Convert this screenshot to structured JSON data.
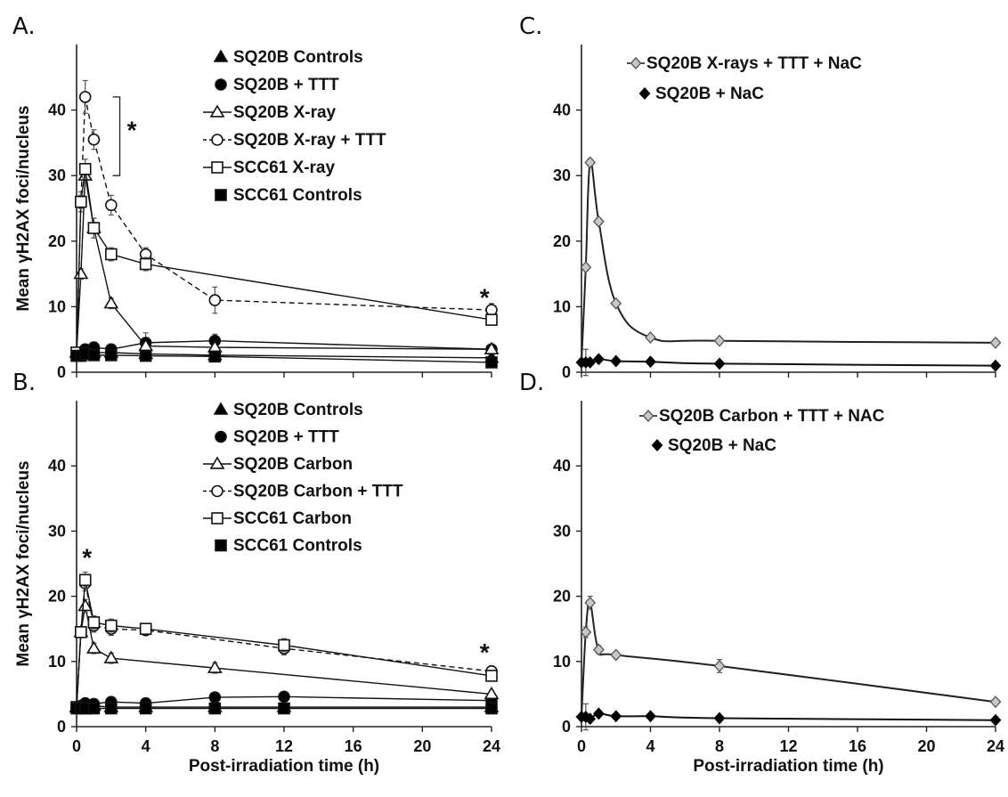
{
  "figure": {
    "x_axis_label": "Post-irradiation time (h)",
    "y_axis_label": "Mean γH2AX foci/nucleus"
  },
  "chart_data": [
    {
      "panel": "A.",
      "type": "line",
      "xlim": [
        0,
        24
      ],
      "ylim": [
        0,
        50
      ],
      "x_ticks": [
        0,
        4,
        8,
        12,
        16,
        20,
        24
      ],
      "y_ticks": [
        0,
        10,
        20,
        30,
        40
      ],
      "x_tick_labels_shown": false,
      "ylabel": "Mean γH2AX foci/nucleus",
      "annotations": [
        {
          "text": "*",
          "x": 3.2,
          "y": 37,
          "bracket_from": 42,
          "bracket_to": 30,
          "bracket_x": 2.5
        },
        {
          "text": "*",
          "x": 23.6,
          "y": 11.5
        }
      ],
      "series": [
        {
          "name": "SQ20B Controls",
          "marker": "triangle",
          "fill": "#000000",
          "line": "solid",
          "x": [
            0,
            0.25,
            0.5,
            1,
            2,
            4,
            8,
            24
          ],
          "y": [
            3,
            3,
            3.2,
            3,
            3,
            2.8,
            2.6,
            2.2
          ],
          "err": [
            0.5,
            0.5,
            0.5,
            0.5,
            0.5,
            0.5,
            0.5,
            0.5
          ]
        },
        {
          "name": "SQ20B + TTT",
          "marker": "circle",
          "fill": "#000000",
          "line": "solid",
          "x": [
            0,
            0.25,
            0.5,
            1,
            2,
            4,
            8,
            24
          ],
          "y": [
            2.5,
            3,
            3.5,
            3.8,
            3.5,
            4.5,
            4.8,
            3.5
          ],
          "err": [
            0.8,
            0.8,
            0.8,
            0.8,
            0.8,
            1.5,
            1.0,
            0.8
          ]
        },
        {
          "name": "SQ20B X-ray",
          "marker": "triangle",
          "fill": "#ffffff",
          "line": "solid",
          "x": [
            0,
            0.25,
            0.5,
            1,
            2,
            4,
            8,
            24
          ],
          "y": [
            3,
            15,
            30,
            22,
            10.5,
            4,
            3.8,
            3.5
          ],
          "err": [
            0.5,
            0.8,
            1.5,
            1.5,
            0.8,
            0.5,
            0.5,
            0.5
          ]
        },
        {
          "name": "SQ20B X-ray + TTT",
          "marker": "circle",
          "fill": "#ffffff",
          "line": "dashed",
          "x": [
            0,
            0.25,
            0.5,
            1,
            2,
            4,
            8,
            24
          ],
          "y": [
            2.5,
            26,
            42,
            35.5,
            25.5,
            18,
            11,
            9.5
          ],
          "err": [
            0.8,
            1.5,
            2.5,
            1.5,
            1.5,
            1.0,
            2.0,
            1.0
          ]
        },
        {
          "name": "SCC61 X-ray",
          "marker": "square",
          "fill": "#ffffff",
          "line": "solid",
          "x": [
            0,
            0.25,
            0.5,
            1,
            2,
            4,
            24
          ],
          "y": [
            3,
            26,
            31,
            22,
            18,
            16.5,
            8
          ],
          "err": [
            0.5,
            1.0,
            1.5,
            1.5,
            1.0,
            1.0,
            0.5
          ]
        },
        {
          "name": "SCC61 Controls",
          "marker": "square",
          "fill": "#000000",
          "line": "solid",
          "x": [
            0,
            0.25,
            0.5,
            1,
            2,
            4,
            8,
            24
          ],
          "y": [
            2.5,
            2.5,
            2.8,
            2.6,
            2.6,
            2.5,
            2.4,
            1.5
          ],
          "err": [
            0.4,
            0.4,
            0.4,
            0.4,
            0.4,
            0.4,
            0.4,
            0.4
          ]
        }
      ]
    },
    {
      "panel": "B.",
      "type": "line",
      "xlim": [
        0,
        24
      ],
      "ylim": [
        0,
        50
      ],
      "x_ticks": [
        0,
        4,
        8,
        12,
        16,
        20,
        24
      ],
      "y_ticks": [
        0,
        10,
        20,
        30,
        40
      ],
      "x_tick_labels_shown": true,
      "xlabel": "Post-irradiation time (h)",
      "ylabel": "Mean γH2AX foci/nucleus",
      "annotations": [
        {
          "text": "*",
          "x": 0.6,
          "y": 26
        },
        {
          "text": "*",
          "x": 23.6,
          "y": 11.5
        }
      ],
      "series": [
        {
          "name": "SQ20B Controls",
          "marker": "triangle",
          "fill": "#000000",
          "line": "solid",
          "x": [
            0,
            0.25,
            0.5,
            1,
            2,
            4,
            8,
            12,
            24
          ],
          "y": [
            3,
            3,
            3.2,
            3.2,
            3,
            3,
            3,
            3,
            3
          ],
          "err": [
            0.6,
            0.6,
            0.6,
            0.6,
            0.6,
            0.6,
            0.6,
            0.6,
            0.6
          ]
        },
        {
          "name": "SQ20B + TTT",
          "marker": "circle",
          "fill": "#000000",
          "line": "solid",
          "x": [
            0,
            0.25,
            0.5,
            1,
            2,
            4,
            8,
            12,
            24
          ],
          "y": [
            3,
            3.2,
            3.6,
            3.5,
            3.8,
            3.6,
            4.5,
            4.6,
            4
          ],
          "err": [
            0.6,
            0.6,
            0.8,
            0.6,
            0.6,
            0.6,
            0.6,
            0.6,
            0.6
          ]
        },
        {
          "name": "SQ20B Carbon",
          "marker": "triangle",
          "fill": "#ffffff",
          "line": "solid",
          "x": [
            0,
            0.25,
            0.5,
            1,
            2,
            8,
            24
          ],
          "y": [
            3,
            14.5,
            18.5,
            12,
            10.5,
            9,
            5
          ],
          "err": [
            0.5,
            0.8,
            1.0,
            0.8,
            0.8,
            0.8,
            0.5
          ]
        },
        {
          "name": "SQ20B Carbon + TTT",
          "marker": "circle",
          "fill": "#ffffff",
          "line": "dashed",
          "x": [
            0,
            0.25,
            0.5,
            1,
            2,
            4,
            12,
            24
          ],
          "y": [
            3,
            14.5,
            22,
            15.5,
            15,
            14.8,
            12,
            8.5
          ],
          "err": [
            0.5,
            0.8,
            1.2,
            1.0,
            1.0,
            0.8,
            1.0,
            0.8
          ]
        },
        {
          "name": "SCC61 Carbon",
          "marker": "square",
          "fill": "#ffffff",
          "line": "solid",
          "x": [
            0,
            0.25,
            0.5,
            1,
            2,
            4,
            12,
            24
          ],
          "y": [
            3,
            14.5,
            22.5,
            16,
            15.5,
            15,
            12.5,
            7.8
          ],
          "err": [
            0.5,
            0.8,
            1.2,
            1.0,
            1.0,
            0.8,
            1.0,
            0.8
          ]
        },
        {
          "name": "SCC61 Controls",
          "marker": "square",
          "fill": "#000000",
          "line": "solid",
          "x": [
            0,
            0.25,
            0.5,
            1,
            2,
            4,
            8,
            12,
            24
          ],
          "y": [
            2.8,
            2.8,
            2.8,
            2.8,
            2.8,
            2.8,
            2.8,
            2.8,
            2.8
          ],
          "err": [
            0.4,
            0.4,
            0.4,
            0.4,
            0.4,
            0.4,
            0.4,
            0.4,
            0.4
          ]
        }
      ]
    },
    {
      "panel": "C.",
      "type": "line",
      "xlim": [
        0,
        24
      ],
      "ylim": [
        0,
        50
      ],
      "x_ticks": [
        0,
        4,
        8,
        12,
        16,
        20,
        24
      ],
      "y_ticks": [
        0,
        10,
        20,
        30,
        40
      ],
      "x_tick_labels_shown": false,
      "series": [
        {
          "name": "SQ20B X-rays + TTT + NaC",
          "marker": "diamond",
          "fill": "#c8c8c8",
          "line": "smooth",
          "x": [
            0,
            0.25,
            0.5,
            1,
            2,
            4,
            8,
            24
          ],
          "y": [
            1.5,
            16,
            32,
            23,
            10.5,
            5.3,
            4.8,
            4.5
          ],
          "err": [
            0.3,
            0.5,
            0.5,
            0.5,
            0.4,
            0.4,
            0.3,
            0.3
          ]
        },
        {
          "name": "SQ20B + NaC",
          "marker": "diamond",
          "fill": "#000000",
          "line": "smooth",
          "x": [
            0,
            0.25,
            0.5,
            1,
            2,
            4,
            8,
            24
          ],
          "y": [
            1.5,
            1.5,
            1.5,
            2,
            1.7,
            1.6,
            1.3,
            1.0
          ],
          "err": [
            0.3,
            2.0,
            0.3,
            0.3,
            0.3,
            0.3,
            0.3,
            0.3
          ]
        }
      ]
    },
    {
      "panel": "D.",
      "type": "line",
      "xlim": [
        0,
        24
      ],
      "ylim": [
        0,
        50
      ],
      "x_ticks": [
        0,
        4,
        8,
        12,
        16,
        20,
        24
      ],
      "y_ticks": [
        0,
        10,
        20,
        30,
        40
      ],
      "x_tick_labels_shown": true,
      "xlabel": "Post-irradiation time (h)",
      "series": [
        {
          "name": "SQ20B Carbon + TTT + NAC",
          "marker": "diamond",
          "fill": "#c8c8c8",
          "line": "smooth",
          "x": [
            0,
            0.25,
            0.5,
            1,
            2,
            8,
            24
          ],
          "y": [
            1.5,
            14.5,
            19,
            11.8,
            11,
            9.3,
            3.8
          ],
          "err": [
            0.3,
            0.8,
            1.0,
            0.6,
            0.5,
            1.0,
            0.4
          ]
        },
        {
          "name": "SQ20B + NaC",
          "marker": "diamond",
          "fill": "#000000",
          "line": "smooth",
          "x": [
            0,
            0.25,
            0.5,
            1,
            2,
            4,
            8,
            24
          ],
          "y": [
            1.5,
            1.5,
            1.2,
            2,
            1.6,
            1.6,
            1.3,
            1.0
          ],
          "err": [
            0.3,
            2.0,
            0.3,
            0.3,
            0.3,
            0.3,
            0.3,
            0.3
          ]
        }
      ]
    }
  ]
}
